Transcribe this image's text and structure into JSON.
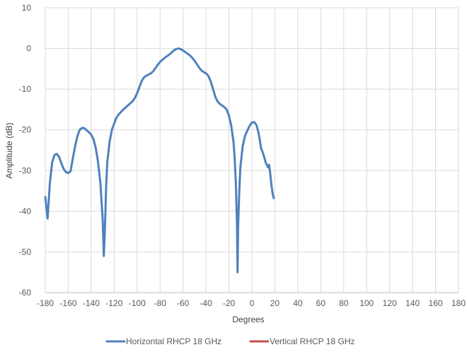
{
  "chart_data": {
    "type": "line",
    "title": "",
    "xlabel": "Degrees",
    "ylabel": "Amplitude  (dB)",
    "xlim": [
      -180,
      180
    ],
    "ylim": [
      -60,
      10
    ],
    "xticks": [
      -180,
      -160,
      -140,
      -120,
      -100,
      -80,
      -60,
      -40,
      -20,
      0,
      20,
      40,
      60,
      80,
      100,
      120,
      140,
      160,
      180
    ],
    "yticks": [
      10,
      0,
      -10,
      -20,
      -30,
      -40,
      -50,
      -60
    ],
    "grid": "vertical and horizontal",
    "legend_position": "bottom",
    "series": [
      {
        "name": "Horizontal RHCP 18 GHz",
        "color": "#4F81BD",
        "points": [
          [
            -180,
            -36.5
          ],
          [
            -178,
            -41.8
          ],
          [
            -176,
            -33
          ],
          [
            -174,
            -28
          ],
          [
            -172,
            -26.2
          ],
          [
            -170,
            -25.9
          ],
          [
            -168,
            -26.6
          ],
          [
            -166,
            -28.2
          ],
          [
            -164,
            -29.6
          ],
          [
            -162,
            -30.4
          ],
          [
            -160,
            -30.6
          ],
          [
            -158,
            -30.2
          ],
          [
            -156,
            -27
          ],
          [
            -154,
            -24
          ],
          [
            -152,
            -21.5
          ],
          [
            -150,
            -20
          ],
          [
            -148,
            -19.5
          ],
          [
            -146,
            -19.6
          ],
          [
            -144,
            -20.1
          ],
          [
            -142,
            -20.6
          ],
          [
            -140,
            -21.2
          ],
          [
            -138,
            -22.3
          ],
          [
            -136,
            -24.5
          ],
          [
            -134,
            -28
          ],
          [
            -132,
            -33
          ],
          [
            -130,
            -42
          ],
          [
            -129,
            -51
          ],
          [
            -128,
            -44
          ],
          [
            -127,
            -34
          ],
          [
            -126,
            -28
          ],
          [
            -124,
            -23
          ],
          [
            -122,
            -20
          ],
          [
            -120,
            -18.5
          ],
          [
            -118,
            -17
          ],
          [
            -116,
            -16.2
          ],
          [
            -114,
            -15.6
          ],
          [
            -112,
            -15
          ],
          [
            -110,
            -14.5
          ],
          [
            -108,
            -14
          ],
          [
            -106,
            -13.5
          ],
          [
            -104,
            -13
          ],
          [
            -102,
            -12.2
          ],
          [
            -100,
            -11
          ],
          [
            -98,
            -9.5
          ],
          [
            -96,
            -8
          ],
          [
            -94,
            -7.1
          ],
          [
            -92,
            -6.7
          ],
          [
            -90,
            -6.4
          ],
          [
            -88,
            -6.1
          ],
          [
            -86,
            -5.6
          ],
          [
            -84,
            -4.8
          ],
          [
            -82,
            -4
          ],
          [
            -80,
            -3.3
          ],
          [
            -78,
            -2.8
          ],
          [
            -76,
            -2.3
          ],
          [
            -74,
            -1.9
          ],
          [
            -72,
            -1.5
          ],
          [
            -70,
            -1
          ],
          [
            -68,
            -0.5
          ],
          [
            -66,
            -0.15
          ],
          [
            -64,
            0
          ],
          [
            -62,
            -0.15
          ],
          [
            -60,
            -0.5
          ],
          [
            -58,
            -0.9
          ],
          [
            -56,
            -1.3
          ],
          [
            -54,
            -1.7
          ],
          [
            -52,
            -2.3
          ],
          [
            -50,
            -3
          ],
          [
            -48,
            -3.8
          ],
          [
            -46,
            -4.7
          ],
          [
            -44,
            -5.4
          ],
          [
            -42,
            -5.8
          ],
          [
            -40,
            -6.1
          ],
          [
            -38,
            -6.7
          ],
          [
            -36,
            -8
          ],
          [
            -34,
            -9.8
          ],
          [
            -32,
            -11.8
          ],
          [
            -30,
            -13
          ],
          [
            -28,
            -13.6
          ],
          [
            -26,
            -14
          ],
          [
            -24,
            -14.4
          ],
          [
            -22,
            -15
          ],
          [
            -20,
            -16.5
          ],
          [
            -18,
            -19
          ],
          [
            -16,
            -23
          ],
          [
            -15,
            -27
          ],
          [
            -14,
            -33
          ],
          [
            -13,
            -43
          ],
          [
            -12.5,
            -55
          ],
          [
            -12,
            -44
          ],
          [
            -11,
            -35
          ],
          [
            -10,
            -29
          ],
          [
            -8,
            -24
          ],
          [
            -6,
            -21.5
          ],
          [
            -4,
            -20.2
          ],
          [
            -2,
            -19
          ],
          [
            0,
            -18.2
          ],
          [
            2,
            -18.1
          ],
          [
            4,
            -18.8
          ],
          [
            6,
            -21
          ],
          [
            8,
            -24.5
          ],
          [
            10,
            -26
          ],
          [
            12,
            -28
          ],
          [
            14,
            -29.2
          ],
          [
            15,
            -28.6
          ],
          [
            16,
            -30.8
          ],
          [
            17,
            -33.5
          ],
          [
            18,
            -35.5
          ],
          [
            19,
            -36.8
          ]
        ],
        "x_offset_note": "",
        "x": [
          -180,
          -178,
          -176,
          -174,
          -172,
          -170,
          -168,
          -166,
          -164,
          -162,
          -160,
          -158,
          -156,
          -154,
          -152,
          -150,
          -148,
          -146,
          -144,
          -142,
          -140,
          -138,
          -136,
          -134,
          -132,
          -130,
          -129,
          -128,
          -127,
          -126,
          -124,
          -122,
          -120,
          -118,
          -116,
          -114,
          -112,
          -110,
          -108,
          -106,
          -104,
          -102,
          -100,
          -98,
          -96,
          -94,
          -92,
          -90,
          -88,
          -86,
          -84,
          -82,
          -80,
          -78,
          -76,
          -74,
          -72,
          -70,
          -68,
          -66,
          -64,
          -62,
          -60,
          -58,
          -56,
          -54,
          -52,
          -50,
          -48,
          -46,
          -44,
          -42,
          -40,
          -38,
          -36,
          -34,
          -32,
          -30,
          -28,
          -26,
          -24,
          -22,
          -20,
          -18,
          -16,
          -15,
          -14,
          -13,
          -12.5,
          -12,
          -11,
          -10,
          -8,
          -6,
          -4,
          -2,
          0,
          2,
          4,
          6,
          8,
          10,
          12,
          14,
          15,
          16,
          17,
          18,
          19
        ]
      }
    ]
  },
  "legend": {
    "horizontal": "Horizontal RHCP 18 GHz",
    "vertical": "Vertical RHCP 18 GHz"
  }
}
